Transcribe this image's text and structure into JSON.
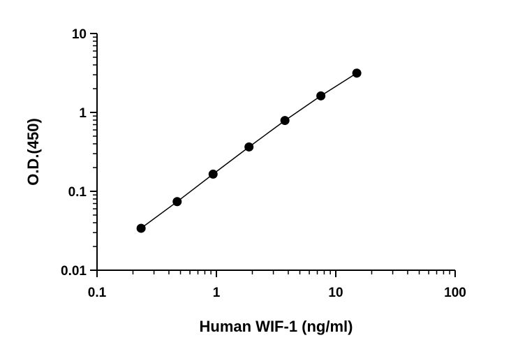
{
  "chart_data": {
    "type": "scatter",
    "title": "",
    "xlabel": "Human WIF-1 (ng/ml)",
    "ylabel": "O.D.(450)",
    "xscale": "log",
    "yscale": "log",
    "xlim": [
      0.1,
      100
    ],
    "ylim": [
      0.01,
      10
    ],
    "xticks": [
      "0.1",
      "1",
      "10",
      "100"
    ],
    "yticks": [
      "0.01",
      "0.1",
      "1",
      "10"
    ],
    "grid": false,
    "legend": "none",
    "fit_line": true,
    "series": [
      {
        "x": [
          0.234,
          0.469,
          0.938,
          1.875,
          3.75,
          7.5,
          15
        ],
        "y": [
          0.034,
          0.074,
          0.165,
          0.365,
          0.79,
          1.62,
          3.15
        ]
      }
    ],
    "colors": {
      "points": "#000000",
      "line": "#000000",
      "axes": "#000000"
    }
  }
}
